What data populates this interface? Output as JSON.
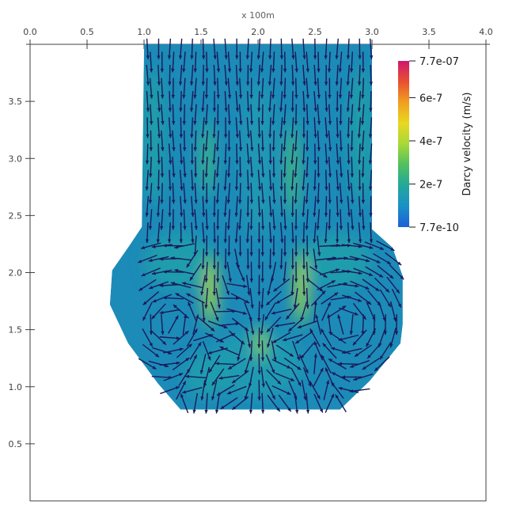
{
  "chart_data": {
    "type": "heatmap",
    "title": "",
    "xaxis": {
      "label": "x 100m",
      "range": [
        0.0,
        4.0
      ],
      "ticks": [
        "0.0",
        "0.5",
        "1.0",
        "1.5",
        "2.0",
        "2.5",
        "3.0",
        "3.5",
        "4.0"
      ]
    },
    "yaxis": {
      "range": [
        0.0,
        4.0
      ],
      "ticks": [
        "0.5",
        "1.0",
        "1.5",
        "2.0",
        "2.5",
        "3.0",
        "3.5"
      ]
    },
    "grid": false,
    "domain_polygon": [
      [
        1.0,
        4.0
      ],
      [
        3.0,
        4.0
      ],
      [
        3.0,
        2.38
      ],
      [
        3.18,
        2.22
      ],
      [
        3.27,
        1.97
      ],
      [
        3.27,
        1.55
      ],
      [
        3.25,
        1.38
      ],
      [
        2.98,
        1.05
      ],
      [
        2.72,
        0.8
      ],
      [
        1.32,
        0.8
      ],
      [
        1.12,
        1.03
      ],
      [
        0.86,
        1.38
      ],
      [
        0.7,
        1.72
      ],
      [
        0.72,
        2.02
      ],
      [
        0.88,
        2.25
      ],
      [
        0.98,
        2.4
      ]
    ],
    "field": {
      "name": "Darcy velocity",
      "units": "m/s",
      "min": 7.7e-10,
      "max": 7.7e-07,
      "high_velocity_bands": [
        {
          "x": 1.58,
          "y_from": 1.5,
          "y_to": 2.2,
          "peak": 4.1e-07
        },
        {
          "x": 2.38,
          "y_from": 1.5,
          "y_to": 2.25,
          "peak": 4e-07
        },
        {
          "x": 2.02,
          "y_from": 1.2,
          "y_to": 1.55,
          "peak": 3.6e-07
        },
        {
          "x": 2.3,
          "y_from": 2.4,
          "y_to": 3.4,
          "peak": 2.8e-07
        },
        {
          "x": 1.55,
          "y_from": 2.6,
          "y_to": 3.4,
          "peak": 2.6e-07
        }
      ]
    },
    "vectors": {
      "color": "#1a1a5a",
      "glyph": "arrow",
      "pattern": "downward flow in upper channel, four recirculation cells in lower basin"
    },
    "colorbar": {
      "title": "Darcy velocity (m/s)",
      "tick_labels": [
        "7.7e-07",
        "6e-7",
        "4e-7",
        "2e-7",
        "7.7e-10"
      ],
      "tick_values": [
        7.7e-07,
        6e-07,
        4e-07,
        2e-07,
        7.7e-10
      ],
      "colormap": [
        "#1f5fd8",
        "#1a90c8",
        "#22a89a",
        "#50c060",
        "#a8d838",
        "#e8d820",
        "#f0a020",
        "#e85030",
        "#d01870"
      ]
    }
  }
}
